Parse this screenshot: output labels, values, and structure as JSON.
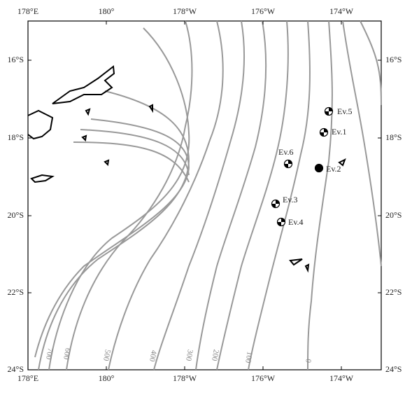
{
  "map": {
    "lon_labels": [
      "178°E",
      "180°",
      "178°W",
      "176°W",
      "174°W"
    ],
    "lat_labels": [
      "16°S",
      "18°S",
      "20°S",
      "22°S",
      "24°S"
    ],
    "events": [
      {
        "label": "Ev.5"
      },
      {
        "label": "Ev.1"
      },
      {
        "label": "Ev.2"
      },
      {
        "label": "Ev.6"
      },
      {
        "label": "Ev.3"
      },
      {
        "label": "Ev.4"
      }
    ],
    "contour_labels": [
      "700",
      "600",
      "500",
      "400",
      "300",
      "200",
      "100",
      "0"
    ]
  }
}
